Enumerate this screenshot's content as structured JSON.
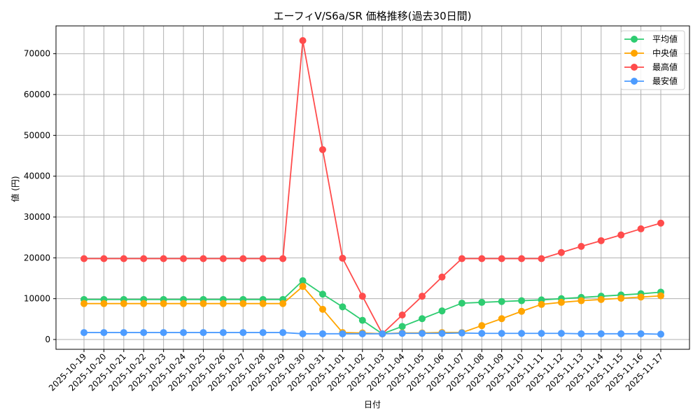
{
  "chart_data": {
    "type": "line",
    "title": "エーフィV/S6a/SR 価格推移(過去30日間)",
    "xlabel": "日付",
    "ylabel": "値 (円)",
    "ylim": [
      -2300,
      76500
    ],
    "yticks": [
      0,
      10000,
      20000,
      30000,
      40000,
      50000,
      60000,
      70000
    ],
    "grid": true,
    "legend_position": "upper right",
    "x": [
      "2025-10-19",
      "2025-10-20",
      "2025-10-21",
      "2025-10-22",
      "2025-10-23",
      "2025-10-24",
      "2025-10-25",
      "2025-10-26",
      "2025-10-27",
      "2025-10-28",
      "2025-10-29",
      "2025-10-30",
      "2025-10-31",
      "2025-11-01",
      "2025-11-02",
      "2025-11-03",
      "2025-11-04",
      "2025-11-05",
      "2025-11-06",
      "2025-11-07",
      "2025-11-08",
      "2025-11-09",
      "2025-11-10",
      "2025-11-11",
      "2025-11-12",
      "2025-11-13",
      "2025-11-14",
      "2025-11-15",
      "2025-11-16",
      "2025-11-17"
    ],
    "series": [
      {
        "name": "平均値",
        "color": "#2ecc71",
        "values": [
          9800,
          9800,
          9800,
          9800,
          9800,
          9800,
          9800,
          9800,
          9800,
          9800,
          9800,
          14400,
          11100,
          8000,
          4700,
          1400,
          3200,
          5100,
          7000,
          8900,
          9100,
          9300,
          9500,
          9700,
          10000,
          10300,
          10600,
          10900,
          11200,
          11600
        ]
      },
      {
        "name": "中央値",
        "color": "#ffa500",
        "values": [
          8800,
          8800,
          8800,
          8800,
          8800,
          8800,
          8800,
          8800,
          8800,
          8800,
          8800,
          13000,
          7400,
          1700,
          1600,
          1400,
          1600,
          1600,
          1700,
          1700,
          3400,
          5100,
          6900,
          8600,
          9100,
          9500,
          9800,
          10100,
          10400,
          10700
        ]
      },
      {
        "name": "最高値",
        "color": "#ff4c4c",
        "values": [
          19800,
          19800,
          19800,
          19800,
          19800,
          19800,
          19800,
          19800,
          19800,
          19800,
          19800,
          73200,
          46500,
          19900,
          10600,
          1400,
          6000,
          10600,
          15300,
          19800,
          19800,
          19800,
          19800,
          19800,
          21300,
          22800,
          24200,
          25600,
          27100,
          28500
        ]
      },
      {
        "name": "最安値",
        "color": "#4d9cff",
        "values": [
          1700,
          1700,
          1700,
          1700,
          1700,
          1700,
          1700,
          1700,
          1700,
          1700,
          1700,
          1400,
          1400,
          1400,
          1400,
          1400,
          1500,
          1500,
          1500,
          1600,
          1500,
          1500,
          1500,
          1500,
          1500,
          1400,
          1400,
          1400,
          1400,
          1300
        ]
      }
    ]
  }
}
